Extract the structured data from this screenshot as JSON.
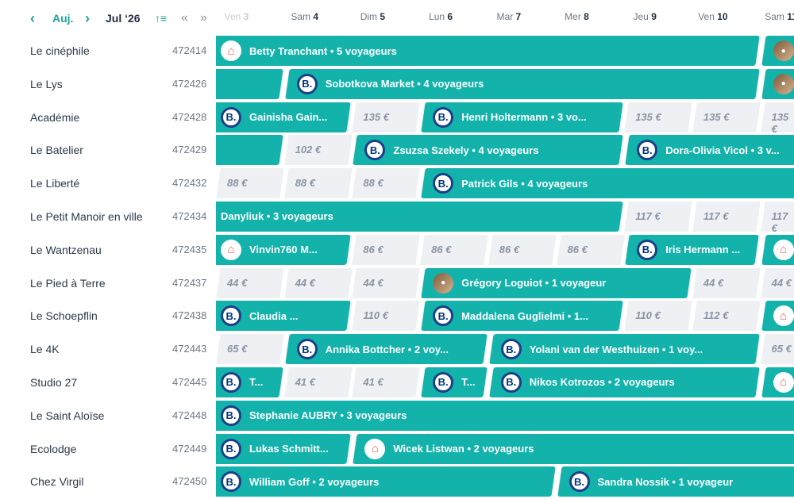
{
  "header": {
    "today_label": "Auj.",
    "month_label": "Jul ‘26",
    "days": [
      {
        "name": "Ven",
        "num": "3"
      },
      {
        "name": "Sam",
        "num": "4"
      },
      {
        "name": "Dim",
        "num": "5"
      },
      {
        "name": "Lun",
        "num": "6"
      },
      {
        "name": "Mar",
        "num": "7"
      },
      {
        "name": "Mer",
        "num": "8"
      },
      {
        "name": "Jeu",
        "num": "9"
      },
      {
        "name": "Ven",
        "num": "10"
      },
      {
        "name": "Sam",
        "num": "11"
      }
    ]
  },
  "properties": [
    {
      "name": "Le cinéphile",
      "id": "472414"
    },
    {
      "name": "Le Lys",
      "id": "472426"
    },
    {
      "name": "Académie",
      "id": "472428"
    },
    {
      "name": "Le Batelier",
      "id": "472429"
    },
    {
      "name": "Le Liberté",
      "id": "472432"
    },
    {
      "name": "Le Petit Manoir en ville",
      "id": "472434"
    },
    {
      "name": "Le Wantzenau",
      "id": "472435"
    },
    {
      "name": "Le Pied à Terre",
      "id": "472437"
    },
    {
      "name": "Le Schoepflin",
      "id": "472438"
    },
    {
      "name": "Le 4K",
      "id": "472443"
    },
    {
      "name": "Studio 27",
      "id": "472445"
    },
    {
      "name": "Le Saint Aloïse",
      "id": "472448"
    },
    {
      "name": "Ecolodge",
      "id": "472449"
    },
    {
      "name": "Chez Virgil",
      "id": "472450"
    }
  ],
  "grid": [
    {
      "prices": [],
      "bookings": [
        {
          "label": "Betty Tranchant • 5 voyageurs",
          "source": "airbnb",
          "start": 0,
          "end": 8
        },
        {
          "label": "",
          "source": "photo",
          "start": 8,
          "end": 9
        }
      ]
    },
    {
      "prices": [],
      "bookings": [
        {
          "label": "",
          "source": "none",
          "start": 0,
          "end": 1
        },
        {
          "label": "Sobotkova Market • 4 voyageurs",
          "source": "booking",
          "start": 1,
          "end": 8
        },
        {
          "label": "",
          "source": "photo",
          "start": 8,
          "end": 9
        }
      ]
    },
    {
      "prices": [
        {
          "day": 2,
          "text": "135 €"
        },
        {
          "day": 6,
          "text": "135 €"
        },
        {
          "day": 7,
          "text": "135 €"
        },
        {
          "day": 8,
          "text": "135 €"
        }
      ],
      "bookings": [
        {
          "label": "Gainisha Gain...",
          "source": "booking",
          "start": 0,
          "end": 2
        },
        {
          "label": "Henri Holtermann • 3 vo...",
          "source": "booking",
          "start": 3,
          "end": 6
        }
      ]
    },
    {
      "prices": [
        {
          "day": 1,
          "text": "102 €"
        }
      ],
      "bookings": [
        {
          "label": "",
          "source": "none",
          "start": 0,
          "end": 1
        },
        {
          "label": "Zsuzsa Szekely • 4 voyageurs",
          "source": "booking",
          "start": 2,
          "end": 6
        },
        {
          "label": "Dora-Olivia Vicol • 3 v...",
          "source": "booking",
          "start": 6,
          "end": 9
        }
      ]
    },
    {
      "prices": [
        {
          "day": 0,
          "text": "88 €"
        },
        {
          "day": 1,
          "text": "88 €"
        },
        {
          "day": 2,
          "text": "88 €"
        }
      ],
      "bookings": [
        {
          "label": "Patrick Gils • 4 voyageurs",
          "source": "booking",
          "start": 3,
          "end": 9
        }
      ]
    },
    {
      "prices": [
        {
          "day": 6,
          "text": "117 €"
        },
        {
          "day": 7,
          "text": "117 €"
        },
        {
          "day": 8,
          "text": "117 €"
        }
      ],
      "bookings": [
        {
          "label": "Danyliuk • 3 voyageurs",
          "source": "none",
          "start": 0,
          "end": 6
        }
      ]
    },
    {
      "prices": [
        {
          "day": 2,
          "text": "86 €"
        },
        {
          "day": 3,
          "text": "86 €"
        },
        {
          "day": 4,
          "text": "86 €"
        },
        {
          "day": 5,
          "text": "86 €"
        }
      ],
      "bookings": [
        {
          "label": "Vinvin760 M...",
          "source": "airbnb",
          "start": 0,
          "end": 2
        },
        {
          "label": "Iris Hermann ...",
          "source": "booking",
          "start": 6,
          "end": 8
        },
        {
          "label": "",
          "source": "airbnb",
          "start": 8,
          "end": 9
        }
      ]
    },
    {
      "prices": [
        {
          "day": 0,
          "text": "44 €"
        },
        {
          "day": 1,
          "text": "44 €"
        },
        {
          "day": 2,
          "text": "44 €"
        },
        {
          "day": 7,
          "text": "44 €"
        },
        {
          "day": 8,
          "text": "44 €"
        }
      ],
      "bookings": [
        {
          "label": "Grégory Loguiot • 1 voyageur",
          "source": "photo",
          "start": 3,
          "end": 7
        }
      ]
    },
    {
      "prices": [
        {
          "day": 2,
          "text": "110 €"
        },
        {
          "day": 6,
          "text": "110 €"
        },
        {
          "day": 7,
          "text": "112 €"
        }
      ],
      "bookings": [
        {
          "label": "Claudia ...",
          "source": "booking",
          "start": 0,
          "end": 2
        },
        {
          "label": "Maddalena Guglielmi • 1...",
          "source": "booking",
          "start": 3,
          "end": 6
        },
        {
          "label": "",
          "source": "airbnb",
          "start": 8,
          "end": 9
        }
      ]
    },
    {
      "prices": [
        {
          "day": 0,
          "text": "65 €"
        },
        {
          "day": 8,
          "text": "65 €"
        }
      ],
      "bookings": [
        {
          "label": "Annika Bottcher • 2 voy...",
          "source": "booking",
          "start": 1,
          "end": 4
        },
        {
          "label": "Yolani van der Westhuizen • 1 voy...",
          "source": "booking",
          "start": 4,
          "end": 8
        }
      ]
    },
    {
      "prices": [
        {
          "day": 1,
          "text": "41 €"
        },
        {
          "day": 2,
          "text": "41 €"
        }
      ],
      "bookings": [
        {
          "label": "T...",
          "source": "booking",
          "start": 0,
          "end": 1
        },
        {
          "label": "T...",
          "source": "booking",
          "start": 3,
          "end": 4
        },
        {
          "label": "Nikos Kotrozos • 2 voyageurs",
          "source": "booking",
          "start": 4,
          "end": 8
        },
        {
          "label": "",
          "source": "airbnb",
          "start": 8,
          "end": 9
        }
      ]
    },
    {
      "prices": [],
      "bookings": [
        {
          "label": "Stephanie AUBRY • 3 voyageurs",
          "source": "booking",
          "start": 0,
          "end": 9
        }
      ]
    },
    {
      "prices": [],
      "bookings": [
        {
          "label": "Lukas Schmitt...",
          "source": "booking",
          "start": 0,
          "end": 2
        },
        {
          "label": "Wicek Listwan • 2 voyageurs",
          "source": "airbnb",
          "start": 2,
          "end": 9
        }
      ]
    },
    {
      "prices": [],
      "bookings": [
        {
          "label": "William Goff • 2 voyageurs",
          "source": "booking",
          "start": 0,
          "end": 5
        },
        {
          "label": "Sandra Nossik • 1 voyageur",
          "source": "booking",
          "start": 5,
          "end": 9
        }
      ]
    }
  ]
}
